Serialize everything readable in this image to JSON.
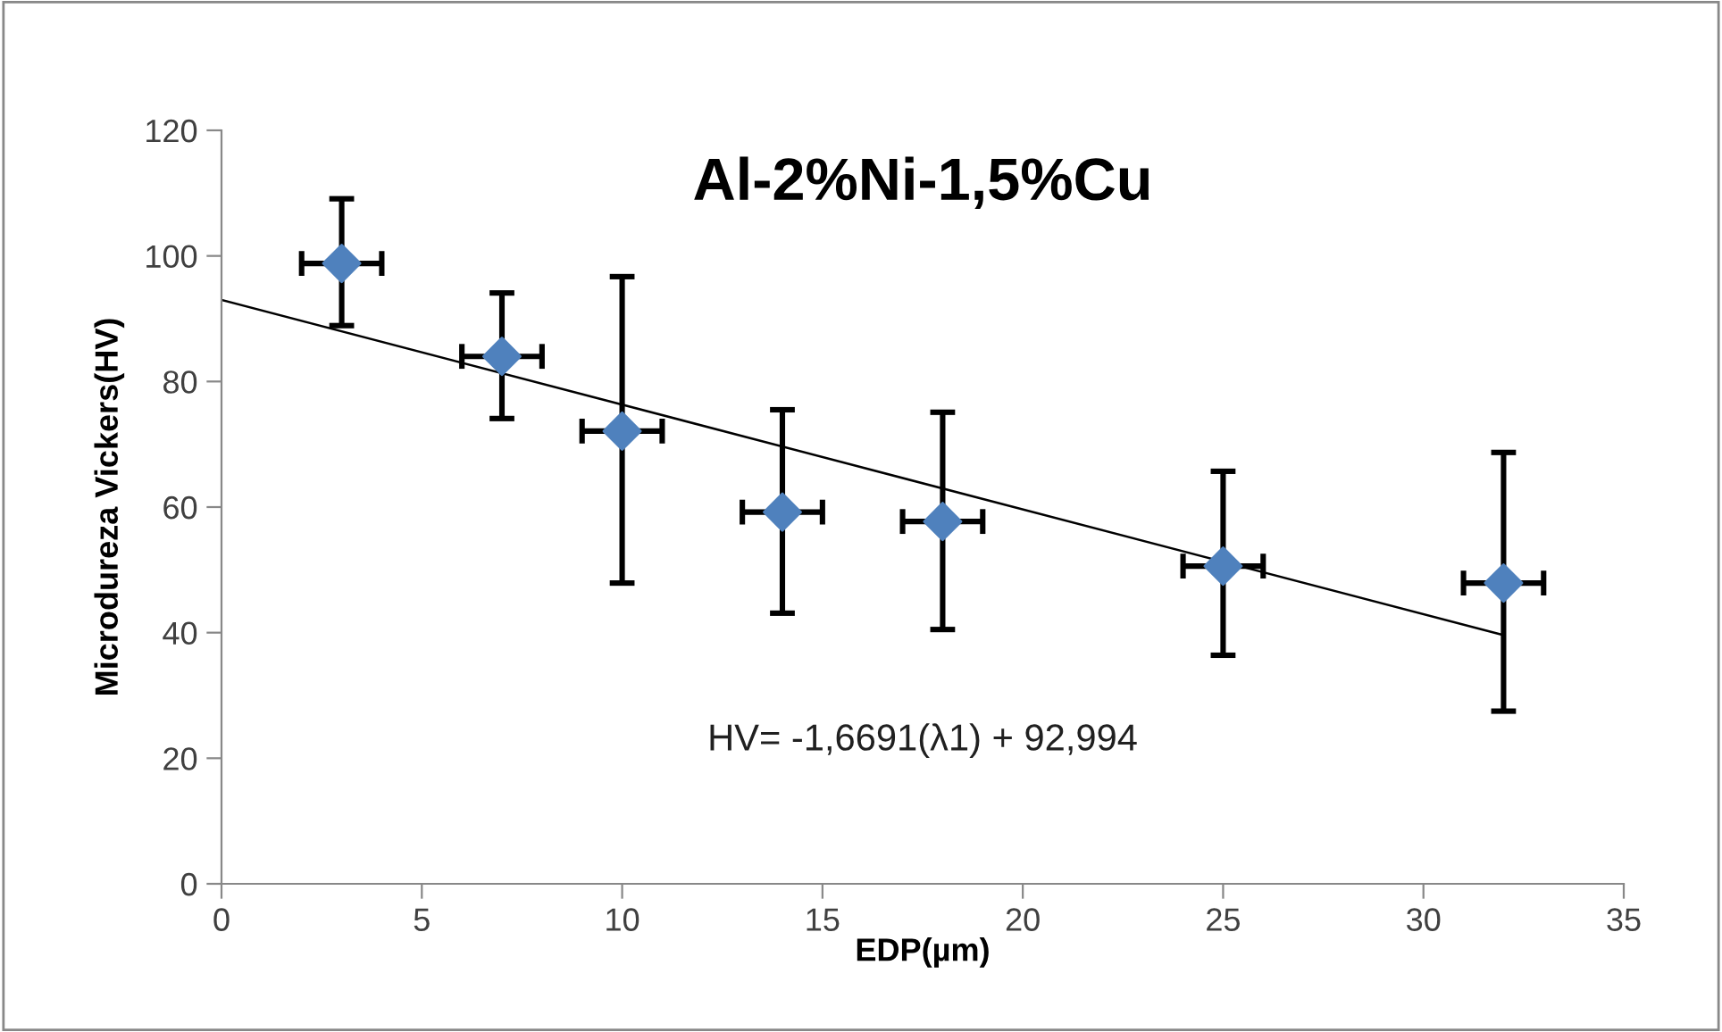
{
  "chart_data": {
    "type": "scatter",
    "title": "Al-2%Ni-1,5%Cu",
    "xlabel": "EDP(µm)",
    "ylabel": "Microdureza Vickers(HV)",
    "xlim": [
      0,
      35
    ],
    "xticks": [
      0,
      5,
      10,
      15,
      20,
      25,
      30,
      35
    ],
    "ylim": [
      0,
      120
    ],
    "yticks": [
      0,
      20,
      40,
      60,
      80,
      100,
      120
    ],
    "grid": false,
    "legend": false,
    "series": [
      {
        "marker": "diamond",
        "color": "#4f81bd",
        "x": [
          3,
          7,
          10,
          14,
          18,
          25,
          32
        ],
        "values": [
          98.8,
          84.0,
          72.1,
          59.2,
          57.7,
          50.6,
          47.9
        ],
        "errors": [
          [
            88.9,
            109.1
          ],
          [
            74.1,
            94.1
          ],
          [
            47.9,
            96.7
          ],
          [
            43.1,
            75.5
          ],
          [
            40.5,
            75.1
          ],
          [
            36.4,
            65.7
          ],
          [
            27.5,
            68.7
          ]
        ],
        "xerrors": [
          1,
          1,
          1,
          1,
          1,
          1,
          1
        ]
      },
      {
        "type": "line",
        "color": "#000000",
        "x": [
          0,
          32
        ],
        "values": [
          93.0,
          39.6
        ]
      }
    ],
    "annotations": [
      "HV= -1,6691(λ1) + 92,994"
    ]
  }
}
